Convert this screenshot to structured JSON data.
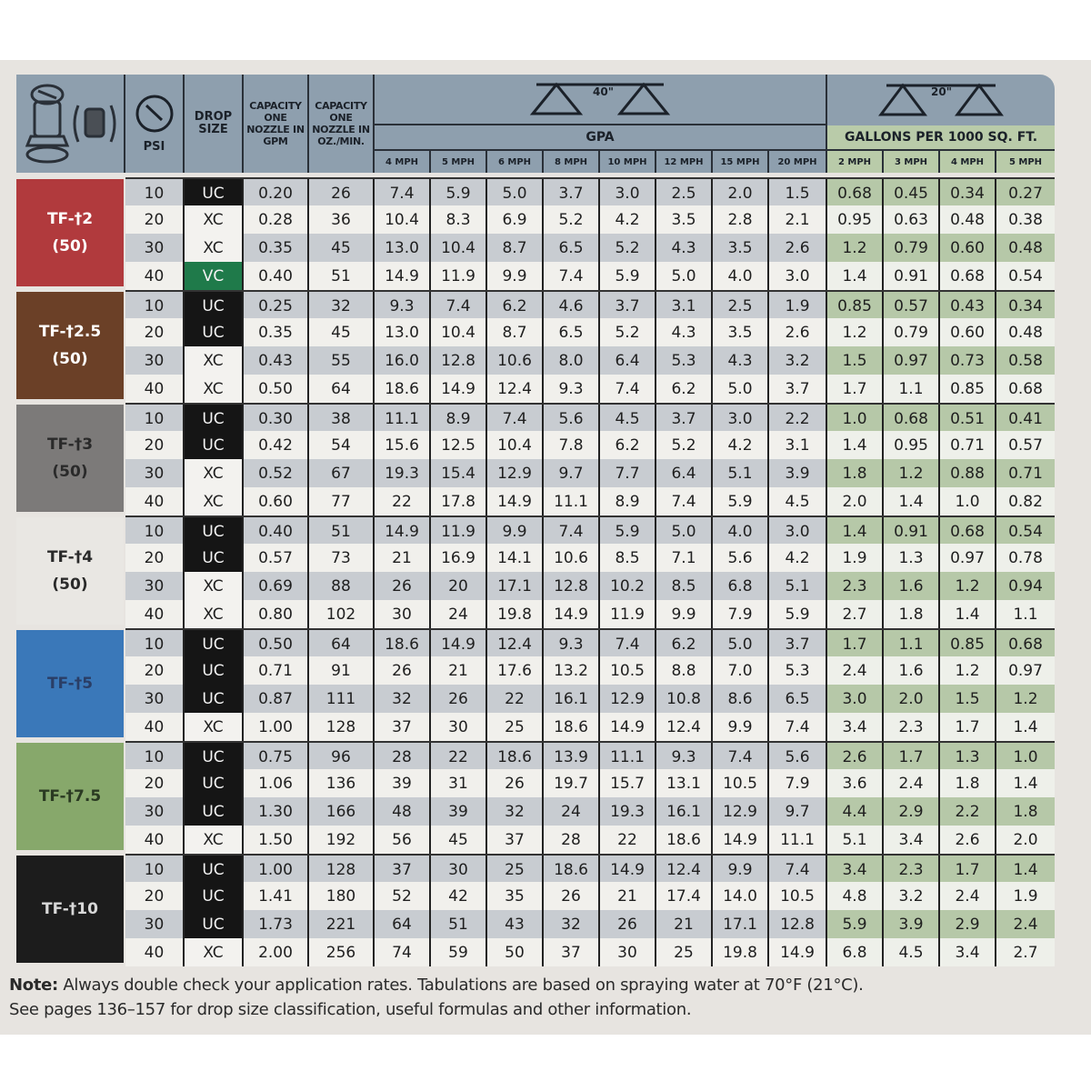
{
  "header": {
    "psi": "PSI",
    "drop_size": "DROP SIZE",
    "capacity_gpm": "CAPACITY ONE NOZZLE IN GPM",
    "capacity_oz": "CAPACITY ONE NOZZLE IN OZ./MIN.",
    "spacing_40": "40\"",
    "spacing_20": "20\"",
    "gpa": "GPA",
    "gal_1000": "GALLONS PER 1000 SQ. FT.",
    "gpa_speeds": [
      "4 MPH",
      "5 MPH",
      "6 MPH",
      "8 MPH",
      "10 MPH",
      "12 MPH",
      "15 MPH",
      "20 MPH"
    ],
    "gal_speeds": [
      "2 MPH",
      "3 MPH",
      "4 MPH",
      "5 MPH"
    ]
  },
  "colors": {
    "header": "#8e9fae",
    "gal_header": "#b9cba9",
    "drop_UC": "#151515",
    "drop_XC": "#f3f2ef",
    "drop_VC": "#1f7a4a"
  },
  "groups": [
    {
      "name": "TF-†2",
      "count": "(50)",
      "color": "#b13a3d",
      "text": "#ffffff",
      "rows": [
        [
          "10",
          "UC",
          "0.20",
          "26",
          "7.4",
          "5.9",
          "5.0",
          "3.7",
          "3.0",
          "2.5",
          "2.0",
          "1.5",
          "0.68",
          "0.45",
          "0.34",
          "0.27"
        ],
        [
          "20",
          "XC",
          "0.28",
          "36",
          "10.4",
          "8.3",
          "6.9",
          "5.2",
          "4.2",
          "3.5",
          "2.8",
          "2.1",
          "0.95",
          "0.63",
          "0.48",
          "0.38"
        ],
        [
          "30",
          "XC",
          "0.35",
          "45",
          "13.0",
          "10.4",
          "8.7",
          "6.5",
          "5.2",
          "4.3",
          "3.5",
          "2.6",
          "1.2",
          "0.79",
          "0.60",
          "0.48"
        ],
        [
          "40",
          "VC",
          "0.40",
          "51",
          "14.9",
          "11.9",
          "9.9",
          "7.4",
          "5.9",
          "5.0",
          "4.0",
          "3.0",
          "1.4",
          "0.91",
          "0.68",
          "0.54"
        ]
      ]
    },
    {
      "name": "TF-†2.5",
      "count": "(50)",
      "color": "#6b4027",
      "text": "#ffffff",
      "rows": [
        [
          "10",
          "UC",
          "0.25",
          "32",
          "9.3",
          "7.4",
          "6.2",
          "4.6",
          "3.7",
          "3.1",
          "2.5",
          "1.9",
          "0.85",
          "0.57",
          "0.43",
          "0.34"
        ],
        [
          "20",
          "UC",
          "0.35",
          "45",
          "13.0",
          "10.4",
          "8.7",
          "6.5",
          "5.2",
          "4.3",
          "3.5",
          "2.6",
          "1.2",
          "0.79",
          "0.60",
          "0.48"
        ],
        [
          "30",
          "XC",
          "0.43",
          "55",
          "16.0",
          "12.8",
          "10.6",
          "8.0",
          "6.4",
          "5.3",
          "4.3",
          "3.2",
          "1.5",
          "0.97",
          "0.73",
          "0.58"
        ],
        [
          "40",
          "XC",
          "0.50",
          "64",
          "18.6",
          "14.9",
          "12.4",
          "9.3",
          "7.4",
          "6.2",
          "5.0",
          "3.7",
          "1.7",
          "1.1",
          "0.85",
          "0.68"
        ]
      ]
    },
    {
      "name": "TF-†3",
      "count": "(50)",
      "color": "#7c7a79",
      "text": "#2a2a2a",
      "rows": [
        [
          "10",
          "UC",
          "0.30",
          "38",
          "11.1",
          "8.9",
          "7.4",
          "5.6",
          "4.5",
          "3.7",
          "3.0",
          "2.2",
          "1.0",
          "0.68",
          "0.51",
          "0.41"
        ],
        [
          "20",
          "UC",
          "0.42",
          "54",
          "15.6",
          "12.5",
          "10.4",
          "7.8",
          "6.2",
          "5.2",
          "4.2",
          "3.1",
          "1.4",
          "0.95",
          "0.71",
          "0.57"
        ],
        [
          "30",
          "XC",
          "0.52",
          "67",
          "19.3",
          "15.4",
          "12.9",
          "9.7",
          "7.7",
          "6.4",
          "5.1",
          "3.9",
          "1.8",
          "1.2",
          "0.88",
          "0.71"
        ],
        [
          "40",
          "XC",
          "0.60",
          "77",
          "22",
          "17.8",
          "14.9",
          "11.1",
          "8.9",
          "7.4",
          "5.9",
          "4.5",
          "2.0",
          "1.4",
          "1.0",
          "0.82"
        ]
      ]
    },
    {
      "name": "TF-†4",
      "count": "(50)",
      "color": "#e9e7e3",
      "text": "#2a2a2a",
      "rows": [
        [
          "10",
          "UC",
          "0.40",
          "51",
          "14.9",
          "11.9",
          "9.9",
          "7.4",
          "5.9",
          "5.0",
          "4.0",
          "3.0",
          "1.4",
          "0.91",
          "0.68",
          "0.54"
        ],
        [
          "20",
          "UC",
          "0.57",
          "73",
          "21",
          "16.9",
          "14.1",
          "10.6",
          "8.5",
          "7.1",
          "5.6",
          "4.2",
          "1.9",
          "1.3",
          "0.97",
          "0.78"
        ],
        [
          "30",
          "XC",
          "0.69",
          "88",
          "26",
          "20",
          "17.1",
          "12.8",
          "10.2",
          "8.5",
          "6.8",
          "5.1",
          "2.3",
          "1.6",
          "1.2",
          "0.94"
        ],
        [
          "40",
          "XC",
          "0.80",
          "102",
          "30",
          "24",
          "19.8",
          "14.9",
          "11.9",
          "9.9",
          "7.9",
          "5.9",
          "2.7",
          "1.8",
          "1.4",
          "1.1"
        ]
      ]
    },
    {
      "name": "TF-†5",
      "count": "",
      "color": "#3a78b9",
      "text": "#2a3e66",
      "rows": [
        [
          "10",
          "UC",
          "0.50",
          "64",
          "18.6",
          "14.9",
          "12.4",
          "9.3",
          "7.4",
          "6.2",
          "5.0",
          "3.7",
          "1.7",
          "1.1",
          "0.85",
          "0.68"
        ],
        [
          "20",
          "UC",
          "0.71",
          "91",
          "26",
          "21",
          "17.6",
          "13.2",
          "10.5",
          "8.8",
          "7.0",
          "5.3",
          "2.4",
          "1.6",
          "1.2",
          "0.97"
        ],
        [
          "30",
          "UC",
          "0.87",
          "111",
          "32",
          "26",
          "22",
          "16.1",
          "12.9",
          "10.8",
          "8.6",
          "6.5",
          "3.0",
          "2.0",
          "1.5",
          "1.2"
        ],
        [
          "40",
          "XC",
          "1.00",
          "128",
          "37",
          "30",
          "25",
          "18.6",
          "14.9",
          "12.4",
          "9.9",
          "7.4",
          "3.4",
          "2.3",
          "1.7",
          "1.4"
        ]
      ]
    },
    {
      "name": "TF-†7.5",
      "count": "",
      "color": "#87a86b",
      "text": "#2a3a22",
      "rows": [
        [
          "10",
          "UC",
          "0.75",
          "96",
          "28",
          "22",
          "18.6",
          "13.9",
          "11.1",
          "9.3",
          "7.4",
          "5.6",
          "2.6",
          "1.7",
          "1.3",
          "1.0"
        ],
        [
          "20",
          "UC",
          "1.06",
          "136",
          "39",
          "31",
          "26",
          "19.7",
          "15.7",
          "13.1",
          "10.5",
          "7.9",
          "3.6",
          "2.4",
          "1.8",
          "1.4"
        ],
        [
          "30",
          "UC",
          "1.30",
          "166",
          "48",
          "39",
          "32",
          "24",
          "19.3",
          "16.1",
          "12.9",
          "9.7",
          "4.4",
          "2.9",
          "2.2",
          "1.8"
        ],
        [
          "40",
          "XC",
          "1.50",
          "192",
          "56",
          "45",
          "37",
          "28",
          "22",
          "18.6",
          "14.9",
          "11.1",
          "5.1",
          "3.4",
          "2.6",
          "2.0"
        ]
      ]
    },
    {
      "name": "TF-†10",
      "count": "",
      "color": "#1c1c1c",
      "text": "#d8d8d8",
      "rows": [
        [
          "10",
          "UC",
          "1.00",
          "128",
          "37",
          "30",
          "25",
          "18.6",
          "14.9",
          "12.4",
          "9.9",
          "7.4",
          "3.4",
          "2.3",
          "1.7",
          "1.4"
        ],
        [
          "20",
          "UC",
          "1.41",
          "180",
          "52",
          "42",
          "35",
          "26",
          "21",
          "17.4",
          "14.0",
          "10.5",
          "4.8",
          "3.2",
          "2.4",
          "1.9"
        ],
        [
          "30",
          "UC",
          "1.73",
          "221",
          "64",
          "51",
          "43",
          "32",
          "26",
          "21",
          "17.1",
          "12.8",
          "5.9",
          "3.9",
          "2.9",
          "2.4"
        ],
        [
          "40",
          "XC",
          "2.00",
          "256",
          "74",
          "59",
          "50",
          "37",
          "30",
          "25",
          "19.8",
          "14.9",
          "6.8",
          "4.5",
          "3.4",
          "2.7"
        ]
      ]
    }
  ],
  "note": {
    "label": "Note:",
    "line1": " Always double check your application rates. Tabulations are based on spraying water at 70°F (21°C).",
    "line2": "See pages 136–157 for drop size classification, useful formulas and other information."
  }
}
